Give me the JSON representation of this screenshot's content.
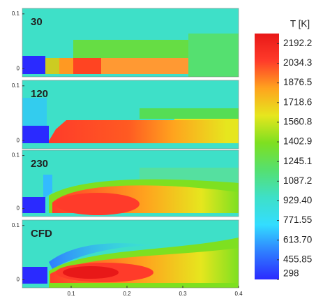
{
  "chart_data": {
    "type": "contour",
    "panels": [
      {
        "label": "30"
      },
      {
        "label": "120"
      },
      {
        "label": "230"
      },
      {
        "label": "CFD"
      }
    ],
    "xlim": [
      0.0125,
      0.4
    ],
    "xticks": [
      0.1,
      0.2,
      0.3,
      0.4
    ],
    "ylim": [
      -0.015,
      0.11
    ],
    "yticks": [
      0,
      0.1
    ],
    "colorbar": {
      "title": "T [K]",
      "lim": [
        298,
        2273
      ],
      "colormap": [
        "#2a2aff",
        "#2f7dff",
        "#33ddff",
        "#3ee0c8",
        "#55e070",
        "#7ee020",
        "#e6e61e",
        "#ffa31e",
        "#ff3b2a",
        "#e81818"
      ],
      "ticks": [
        2192.2,
        2034.3,
        1876.5,
        1718.6,
        1560.8,
        1402.9,
        1245.1,
        1087.2,
        {
          "value": 929.4,
          "label": "929.40"
        },
        771.55,
        {
          "value": 613.7,
          "label": "613.70"
        },
        455.85,
        298
      ]
    }
  }
}
